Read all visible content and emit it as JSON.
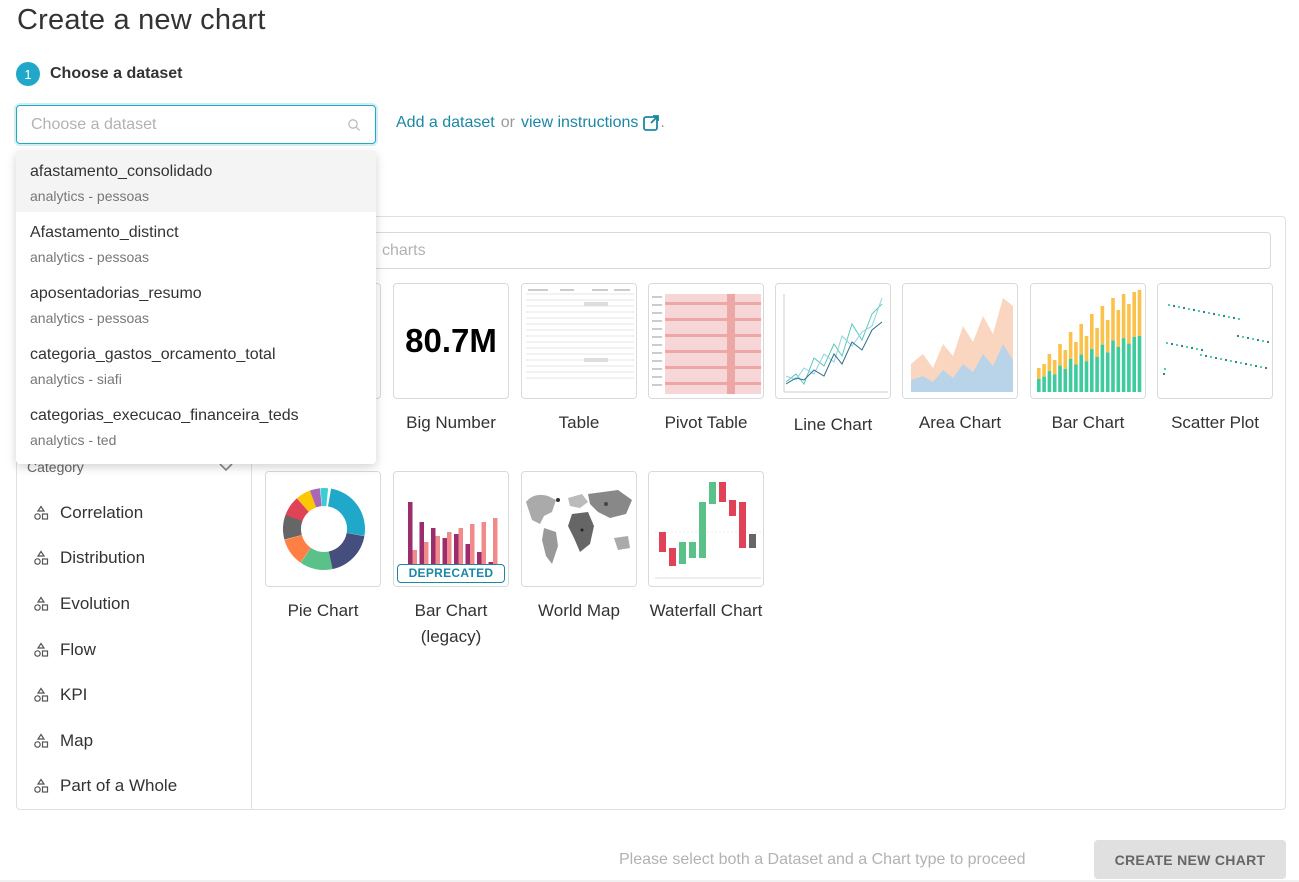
{
  "page": {
    "title": "Create a new chart"
  },
  "step1": {
    "number": "1",
    "label": "Choose a dataset"
  },
  "dataset_select": {
    "placeholder": "Choose a dataset"
  },
  "add_dataset": {
    "add_label": "Add a dataset",
    "or": "or",
    "instructions_label": "view instructions",
    "trailing": "."
  },
  "dropdown": {
    "items": [
      {
        "name": "afastamento_consolidado",
        "database": "analytics - pessoas"
      },
      {
        "name": "Afastamento_distinct",
        "database": "analytics - pessoas"
      },
      {
        "name": "aposentadorias_resumo",
        "database": "analytics - pessoas"
      },
      {
        "name": "categoria_gastos_orcamento_total",
        "database": "analytics - siafi"
      },
      {
        "name": "categorias_execucao_financeira_teds",
        "database": "analytics - ted"
      }
    ]
  },
  "chart_search": {
    "placeholder_visible": "charts"
  },
  "categories": {
    "header": "Category",
    "items": [
      "Correlation",
      "Distribution",
      "Evolution",
      "Flow",
      "KPI",
      "Map",
      "Part of a Whole"
    ]
  },
  "chart_types": [
    {
      "label": "Big Number",
      "thumb_text": "80.7M"
    },
    {
      "label": "Table"
    },
    {
      "label": "Pivot Table"
    },
    {
      "label": "Line Chart"
    },
    {
      "label": "Area Chart"
    },
    {
      "label": "Bar Chart"
    },
    {
      "label": "Scatter Plot"
    },
    {
      "label": "Pie Chart"
    },
    {
      "label": "Bar Chart (legacy)",
      "badge": "DEPRECATED"
    },
    {
      "label": "World Map"
    },
    {
      "label": "Waterfall Chart"
    }
  ],
  "footer": {
    "hint": "Please select both a Dataset and a Chart type to proceed",
    "create_label": "CREATE NEW CHART"
  },
  "colors": {
    "accent": "#20a7c9",
    "link": "#1b87a6",
    "disabled_btn": "#e0e0e0"
  }
}
